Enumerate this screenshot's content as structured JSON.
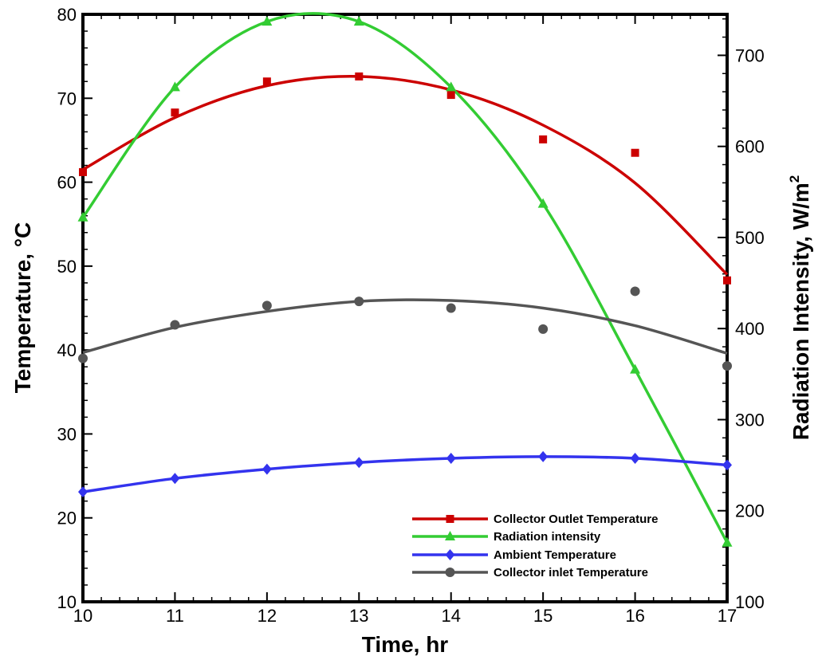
{
  "chart_data": {
    "type": "line",
    "xlabel": "Time, hr",
    "ylabel_left": "Temperature, °C",
    "ylabel_right_main": "Radiation Intensity, W/m",
    "ylabel_right_sup": "2",
    "x_ticks": [
      10,
      11,
      12,
      13,
      14,
      15,
      16,
      17
    ],
    "y_left_ticks": [
      10,
      20,
      30,
      40,
      50,
      60,
      70,
      80
    ],
    "y_right_ticks": [
      100,
      200,
      300,
      400,
      500,
      600,
      700
    ],
    "xlim": [
      10,
      17
    ],
    "ylim_left": [
      10,
      80
    ],
    "ylim_right": [
      100,
      745
    ],
    "grid": false,
    "legend_position": "bottom-right",
    "colors": {
      "outlet": "#cc0000",
      "radiation": "#33cc33",
      "ambient": "#3333ee",
      "inlet": "#555555"
    },
    "series": [
      {
        "name": "Collector Outlet Temperature",
        "key": "outlet",
        "axis": "left",
        "marker": "square",
        "x": [
          10,
          11,
          12,
          13,
          14,
          15,
          16,
          17
        ],
        "y": [
          61.2,
          68.3,
          72.0,
          72.6,
          70.4,
          65.1,
          63.5,
          48.3
        ],
        "fit": [
          61.5,
          67.7,
          71.5,
          72.6,
          71.0,
          66.8,
          59.9,
          49.0
        ]
      },
      {
        "name": "Radiation intensity",
        "key": "radiation",
        "axis": "right",
        "marker": "triangle",
        "x": [
          10,
          11,
          12,
          13,
          14,
          15,
          16,
          17
        ],
        "y": [
          522,
          665,
          737,
          737,
          665,
          537,
          355,
          165
        ],
        "fit": [
          522,
          665,
          737,
          737,
          665,
          537,
          355,
          165
        ]
      },
      {
        "name": "Ambient Temperature",
        "key": "ambient",
        "axis": "left",
        "marker": "diamond",
        "x": [
          10,
          11,
          12,
          13,
          14,
          15,
          16,
          17
        ],
        "y": [
          23.1,
          24.7,
          25.8,
          26.6,
          27.1,
          27.3,
          27.1,
          26.3
        ],
        "fit": [
          23.1,
          24.7,
          25.8,
          26.6,
          27.1,
          27.3,
          27.1,
          26.3
        ]
      },
      {
        "name": "Collector inlet Temperature",
        "key": "inlet",
        "axis": "left",
        "marker": "circle",
        "x": [
          10,
          11,
          12,
          13,
          14,
          15,
          16,
          17
        ],
        "y": [
          39.0,
          43.0,
          45.3,
          45.8,
          45.0,
          42.5,
          47.0,
          38.1
        ],
        "fit": [
          39.7,
          42.7,
          44.6,
          45.8,
          45.9,
          45.0,
          42.9,
          39.6
        ]
      }
    ]
  }
}
